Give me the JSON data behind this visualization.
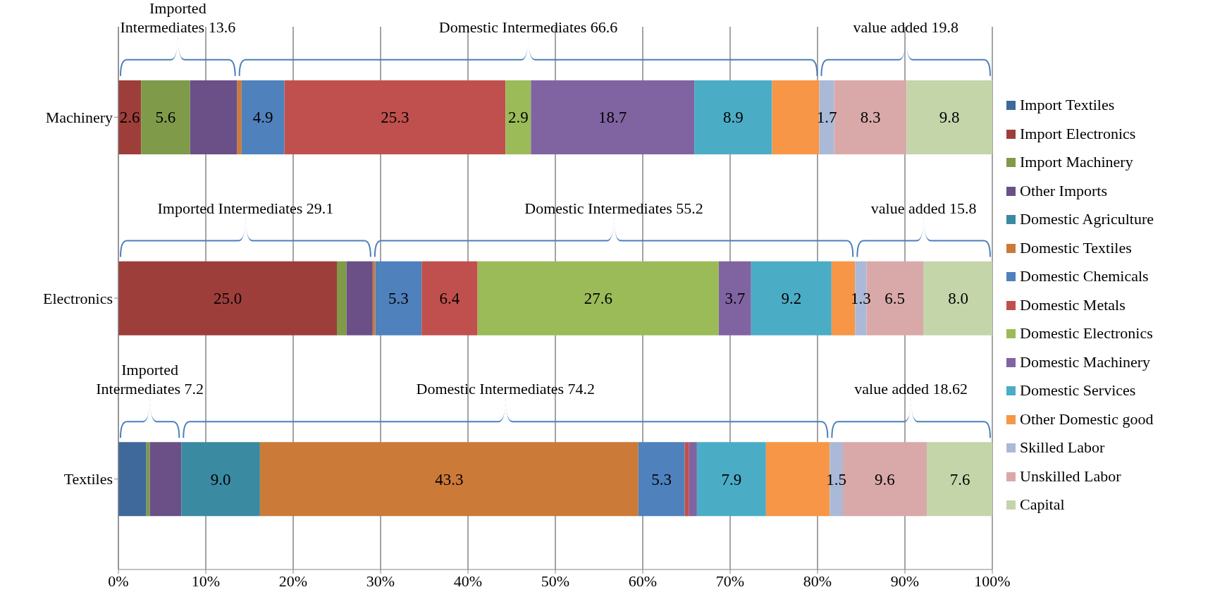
{
  "chart_data": {
    "type": "bar",
    "orientation": "horizontal",
    "stacked": true,
    "categories": [
      "Machinery",
      "Electronics",
      "Textiles"
    ],
    "series": [
      {
        "name": "Import Textiles",
        "color": "#3f689b",
        "values": [
          0,
          0,
          3.2
        ],
        "value_labels": [
          null,
          null,
          null
        ]
      },
      {
        "name": "Import Electronics",
        "color": "#9e3e3b",
        "values": [
          2.6,
          25.0,
          0
        ],
        "value_labels": [
          "2.6",
          "25.0",
          null
        ]
      },
      {
        "name": "Import Machinery",
        "color": "#7f9a48",
        "values": [
          5.6,
          1.1,
          0.4
        ],
        "value_labels": [
          "5.6",
          null,
          null
        ]
      },
      {
        "name": "Other Imports",
        "color": "#6a5087",
        "values": [
          5.4,
          3.0,
          3.6
        ],
        "value_labels": [
          null,
          null,
          null
        ]
      },
      {
        "name": "Domestic Agriculture",
        "color": "#3a8aa2",
        "values": [
          0,
          0,
          9.0
        ],
        "value_labels": [
          null,
          null,
          "9.0"
        ]
      },
      {
        "name": "Domestic Textiles",
        "color": "#cc7a38",
        "values": [
          0.5,
          0.3,
          43.3
        ],
        "value_labels": [
          null,
          null,
          "43.3"
        ]
      },
      {
        "name": "Domestic Chemicals",
        "color": "#4f81bd",
        "values": [
          4.9,
          5.3,
          5.3
        ],
        "value_labels": [
          "4.9",
          "5.3",
          "5.3"
        ]
      },
      {
        "name": "Domestic Metals",
        "color": "#c0504d",
        "values": [
          25.3,
          6.4,
          0.5
        ],
        "value_labels": [
          "25.3",
          "6.4",
          null
        ]
      },
      {
        "name": "Domestic Electronics",
        "color": "#9bbb59",
        "values": [
          2.9,
          27.6,
          0
        ],
        "value_labels": [
          "2.9",
          "27.6",
          null
        ]
      },
      {
        "name": "Domestic Machinery",
        "color": "#8064a2",
        "values": [
          18.7,
          3.7,
          0.9
        ],
        "value_labels": [
          "18.7",
          "3.7",
          null
        ]
      },
      {
        "name": "Domestic Services",
        "color": "#4bacc6",
        "values": [
          8.9,
          9.2,
          7.9
        ],
        "value_labels": [
          "8.9",
          "9.2",
          "7.9"
        ]
      },
      {
        "name": "Other Domestic good",
        "color": "#f79646",
        "values": [
          5.4,
          2.7,
          7.3
        ],
        "value_labels": [
          null,
          null,
          null
        ]
      },
      {
        "name": "Skilled Labor",
        "color": "#aab9d8",
        "values": [
          1.7,
          1.3,
          1.5
        ],
        "value_labels": [
          "1.7",
          "1.3",
          "1.5"
        ]
      },
      {
        "name": "Unskilled Labor",
        "color": "#d9a9a9",
        "values": [
          8.3,
          6.5,
          9.6
        ],
        "value_labels": [
          "8.3",
          "6.5",
          "9.6"
        ]
      },
      {
        "name": "Capital",
        "color": "#c4d5aa",
        "values": [
          9.8,
          8.0,
          7.6
        ],
        "value_labels": [
          "9.8",
          "8.0",
          "7.6"
        ]
      }
    ],
    "xlim": [
      0,
      100
    ],
    "xticks": [
      {
        "value": 0,
        "label": "0%"
      },
      {
        "value": 10,
        "label": "10%"
      },
      {
        "value": 20,
        "label": "20%"
      },
      {
        "value": 30,
        "label": "30%"
      },
      {
        "value": 40,
        "label": "40%"
      },
      {
        "value": 50,
        "label": "50%"
      },
      {
        "value": 60,
        "label": "60%"
      },
      {
        "value": 70,
        "label": "70%"
      },
      {
        "value": 80,
        "label": "80%"
      },
      {
        "value": 90,
        "label": "90%"
      },
      {
        "value": 100,
        "label": "100%"
      }
    ],
    "grid": "x",
    "legend": "right",
    "annotations": [
      "Imported Intermediates 13.6",
      "Domestic Intermediates 66.6",
      "value added 19.8",
      "Imported Intermediates 29.1",
      "Domestic Intermediates 55.2",
      "value added 15.8",
      "Imported Intermediates 7.2",
      "Domestic Intermediates 74.2",
      "value added 18.62"
    ]
  }
}
